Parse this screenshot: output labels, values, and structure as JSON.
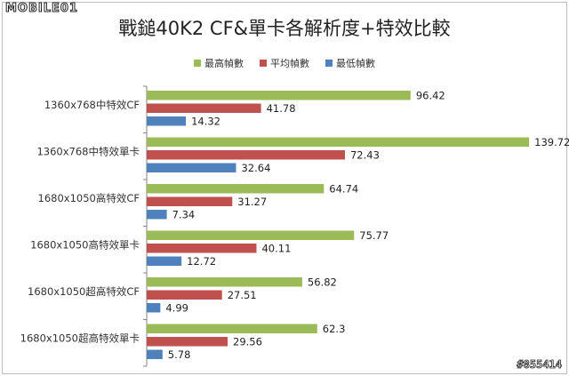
{
  "logo_text": "MOBILE01",
  "watermark": "#855414",
  "colors": {
    "max": "#9bbb59",
    "avg": "#c0504d",
    "min": "#4f81bd"
  },
  "chart_data": {
    "type": "bar",
    "orientation": "horizontal",
    "title": "戰鎚40K2 CF&單卡各解析度+特效比較",
    "xlabel": "",
    "ylabel": "",
    "xlim": [
      0,
      140
    ],
    "grid": false,
    "legend": "top",
    "categories": [
      "1360x768中特效CF",
      "1360x768中特效單卡",
      "1680x1050高特效CF",
      "1680x1050高特效單卡",
      "1680x1050超高特效CF",
      "1680x1050超高特效單卡"
    ],
    "series": [
      {
        "name": "最高幀數",
        "color": "#9bbb59",
        "values": [
          96.42,
          139.72,
          64.74,
          75.77,
          56.82,
          62.3
        ]
      },
      {
        "name": "平均幀數",
        "color": "#c0504d",
        "values": [
          41.78,
          72.43,
          31.27,
          40.11,
          27.51,
          29.56
        ]
      },
      {
        "name": "最低幀數",
        "color": "#4f81bd",
        "values": [
          14.32,
          32.64,
          7.34,
          12.72,
          4.99,
          5.78
        ]
      }
    ]
  }
}
